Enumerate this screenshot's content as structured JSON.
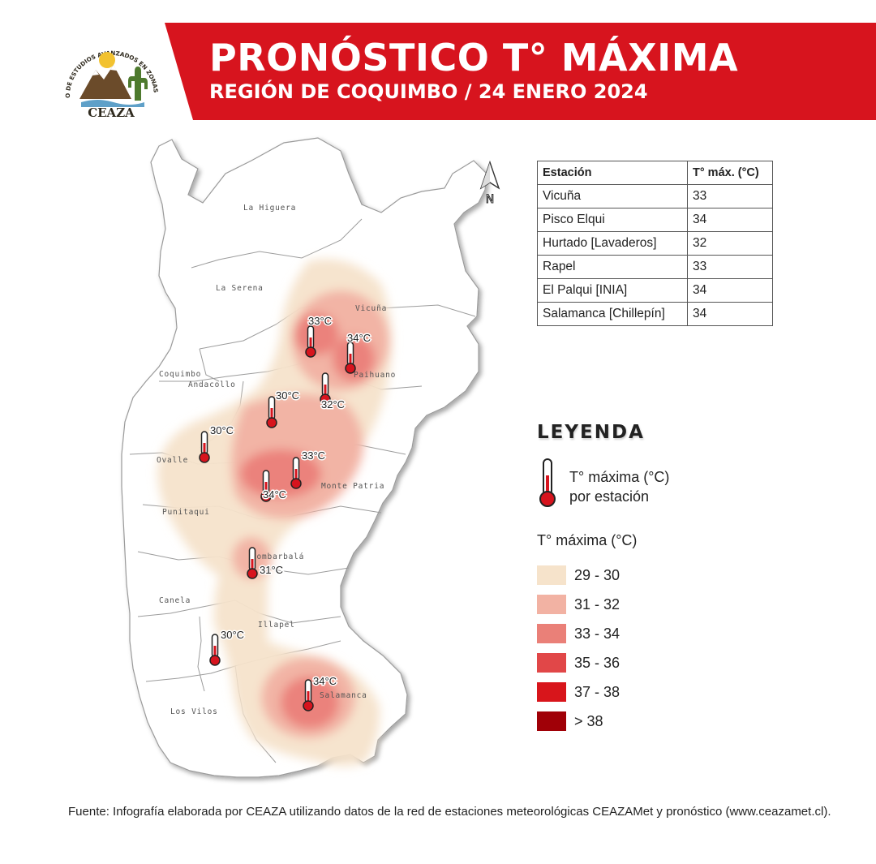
{
  "header": {
    "title": "PRONÓSTICO T° MÁXIMA",
    "subtitle": "REGIÓN DE COQUIMBO / 24 ENERO 2024",
    "banner_color": "#D7141E"
  },
  "logo": {
    "arc_text": "CENTRO DE ESTUDIOS AVANZADOS EN ZONAS ÁRIDAS",
    "wordmark": "CEAZA",
    "colors": {
      "sun": "#F2C230",
      "mountain": "#6B4B2A",
      "cactus": "#4E7A2E",
      "text": "#2F2A1E"
    }
  },
  "map": {
    "north_label": "N",
    "comunas": [
      "La Higuera",
      "La Serena",
      "Vicuña",
      "Coquimbo",
      "Andacollo",
      "Paihuano",
      "Ovalle",
      "Monte Patria",
      "Punitaqui",
      "Combarbalá",
      "Canela",
      "Illapel",
      "Salamanca",
      "Los Vilos"
    ],
    "station_labels": [
      "33°C",
      "34°C",
      "32°C",
      "30°C",
      "30°C",
      "33°C",
      "34°C",
      "31°C",
      "30°C",
      "34°C"
    ]
  },
  "stations_table": {
    "headers": [
      "Estación",
      "T° máx. (°C)"
    ],
    "rows": [
      [
        "Vicuña",
        "33"
      ],
      [
        "Pisco Elqui",
        "34"
      ],
      [
        "Hurtado [Lavaderos]",
        "32"
      ],
      [
        "Rapel",
        "33"
      ],
      [
        "El Palqui [INIA]",
        "34"
      ],
      [
        "Salamanca [Chillepín]",
        "34"
      ]
    ]
  },
  "legend": {
    "title": "LEYENDA",
    "thermometer_label_line1": "T° máxima (°C)",
    "thermometer_label_line2": "por estación",
    "scale_title": "T° máxima (°C)",
    "items": [
      {
        "label": "29 - 30",
        "color": "#F6E3CB"
      },
      {
        "label": "31 - 32",
        "color": "#F2B2A3"
      },
      {
        "label": "33 - 34",
        "color": "#EA8078"
      },
      {
        "label": "35 - 36",
        "color": "#E14748"
      },
      {
        "label": "37 - 38",
        "color": "#D8151B"
      },
      {
        "label": "> 38",
        "color": "#A00007"
      }
    ]
  },
  "footer": {
    "text": "Fuente: Infografía elaborada por CEAZA utilizando datos de la red de estaciones meteorológicas CEAZAMet y pronóstico (www.ceazamet.cl)."
  }
}
